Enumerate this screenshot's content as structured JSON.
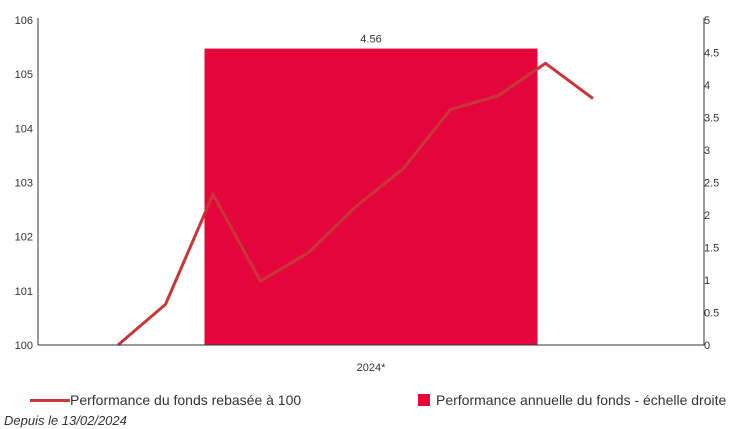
{
  "chart_data": {
    "type": "bar+line",
    "categories": [
      "2024*"
    ],
    "bar_series": {
      "name": "Performance annuelle du fonds - échelle droite",
      "values": [
        4.56
      ],
      "data_labels": [
        "4.56"
      ],
      "color": "#e4063a",
      "axis": "right"
    },
    "line_series": {
      "name": "Performance du fonds rebasée à 100",
      "values": [
        100.0,
        100.75,
        102.78,
        101.18,
        101.7,
        102.55,
        103.25,
        104.35,
        104.6,
        105.2,
        104.55
      ],
      "color": "#c8363a",
      "axis": "left"
    },
    "y_left": {
      "ylim": [
        100,
        106
      ],
      "ticks": [
        "100",
        "101",
        "102",
        "103",
        "104",
        "105",
        "106"
      ]
    },
    "y_right": {
      "ylim": [
        0,
        5
      ],
      "ticks": [
        "0",
        "0.5",
        "1",
        "1.5",
        "2",
        "2.5",
        "3",
        "3.5",
        "4",
        "4.5",
        "5"
      ]
    },
    "grid": false,
    "legend_position": "bottom"
  },
  "footnote": "Depuis le 13/02/2024"
}
